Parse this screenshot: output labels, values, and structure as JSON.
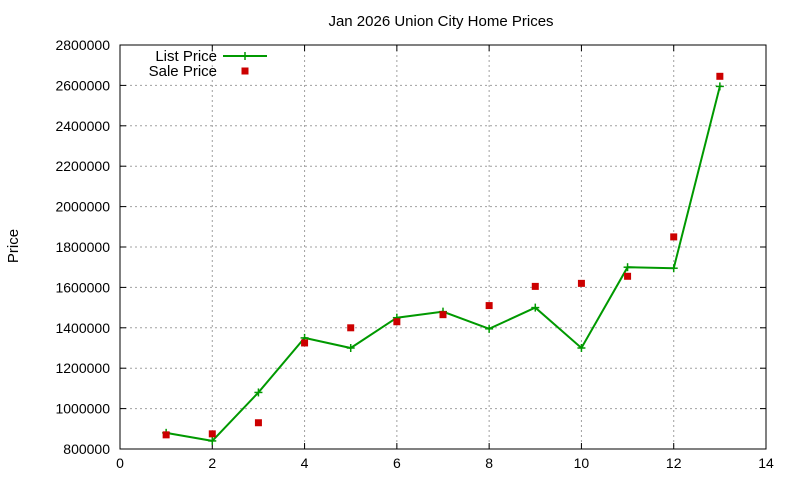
{
  "chart_data": {
    "type": "line",
    "title": "Jan 2026 Union City Home Prices",
    "xlabel": "",
    "ylabel": "Price",
    "xlim": [
      0,
      14
    ],
    "ylim": [
      800000,
      2800000
    ],
    "x_ticks": [
      0,
      2,
      4,
      6,
      8,
      10,
      12,
      14
    ],
    "y_ticks": [
      800000,
      1000000,
      1200000,
      1400000,
      1600000,
      1800000,
      2000000,
      2200000,
      2400000,
      2600000,
      2800000
    ],
    "x_tick_labels": [
      "0",
      "2",
      "4",
      "6",
      "8",
      "10",
      "12",
      "14"
    ],
    "y_tick_labels": [
      "800000",
      "1000000",
      "1200000",
      "1400000",
      "1600000",
      "1800000",
      "2000000",
      "2200000",
      "2400000",
      "2600000",
      "2800000"
    ],
    "grid": true,
    "legend_position": "top-left",
    "series": [
      {
        "name": "List Price",
        "style": "line+cross",
        "color": "#009900",
        "x": [
          1,
          2,
          3,
          4,
          5,
          6,
          7,
          8,
          9,
          10,
          11,
          12,
          13
        ],
        "values": [
          880000,
          840000,
          1080000,
          1350000,
          1300000,
          1450000,
          1480000,
          1395000,
          1500000,
          1300000,
          1700000,
          1695000,
          2595000
        ]
      },
      {
        "name": "Sale Price",
        "style": "square",
        "color": "#cc0000",
        "x": [
          1,
          2,
          3,
          4,
          5,
          6,
          7,
          8,
          9,
          10,
          11,
          12,
          13
        ],
        "values": [
          870000,
          875000,
          930000,
          1325000,
          1400000,
          1430000,
          1465000,
          1510000,
          1605000,
          1620000,
          1655000,
          1850000,
          2645000
        ]
      }
    ]
  }
}
